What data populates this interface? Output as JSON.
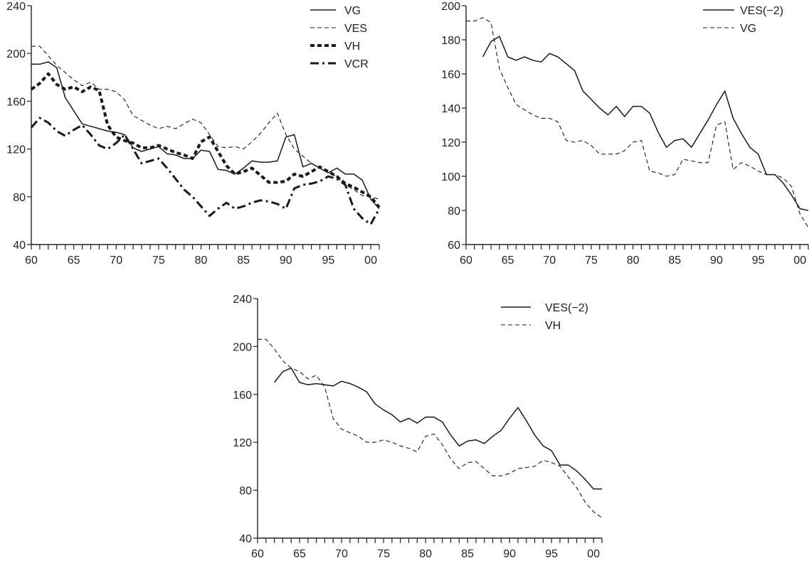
{
  "chart_data": [
    {
      "type": "line",
      "title": "",
      "xlabel": "",
      "ylabel": "",
      "xlim": [
        1960,
        2001
      ],
      "ylim": [
        40,
        240
      ],
      "yticks": [
        40,
        80,
        120,
        160,
        200,
        240
      ],
      "xticks": [
        1960,
        1965,
        1970,
        1975,
        1980,
        1985,
        1990,
        1995,
        2000
      ],
      "xtick_labels": [
        "60",
        "65",
        "70",
        "75",
        "80",
        "85",
        "90",
        "95",
        "00"
      ],
      "legend_position": "top-right",
      "series": [
        {
          "name": "VG",
          "style": "solid-thin",
          "x": [
            1960,
            1961,
            1962,
            1963,
            1964,
            1965,
            1966,
            1967,
            1968,
            1969,
            1970,
            1971,
            1972,
            1973,
            1974,
            1975,
            1976,
            1977,
            1978,
            1979,
            1980,
            1981,
            1982,
            1983,
            1984,
            1985,
            1986,
            1987,
            1988,
            1989,
            1990,
            1991,
            1992,
            1993,
            1994,
            1995,
            1996,
            1997,
            1998,
            1999,
            2000,
            2001
          ],
          "values": [
            191,
            191,
            193,
            188,
            163,
            152,
            141,
            139,
            137,
            135,
            134,
            132,
            121,
            118,
            120,
            122,
            116,
            115,
            112,
            112,
            119,
            118,
            103,
            102,
            99,
            104,
            110,
            109,
            109,
            110,
            130,
            132,
            105,
            108,
            104,
            100,
            104,
            99,
            99,
            94,
            78,
            70
          ]
        },
        {
          "name": "VES",
          "style": "dashed-thin",
          "x": [
            1960,
            1961,
            1962,
            1963,
            1964,
            1965,
            1966,
            1967,
            1968,
            1969,
            1970,
            1971,
            1972,
            1973,
            1974,
            1975,
            1976,
            1977,
            1978,
            1979,
            1980,
            1981,
            1982,
            1983,
            1984,
            1985,
            1986,
            1987,
            1988,
            1989,
            1990,
            1991,
            1992,
            1993,
            1994,
            1995,
            1996,
            1997,
            1998,
            1999,
            2000,
            2001
          ],
          "values": [
            206,
            206,
            198,
            190,
            184,
            178,
            173,
            176,
            170,
            170,
            168,
            161,
            148,
            144,
            140,
            137,
            139,
            137,
            141,
            145,
            142,
            132,
            122,
            121,
            122,
            120,
            126,
            133,
            142,
            150,
            132,
            120,
            114,
            108,
            104,
            100,
            97,
            90,
            86,
            81,
            80,
            78
          ]
        },
        {
          "name": "VH",
          "style": "dotted-thick",
          "x": [
            1960,
            1961,
            1962,
            1963,
            1964,
            1965,
            1966,
            1967,
            1968,
            1969,
            1970,
            1971,
            1972,
            1973,
            1974,
            1975,
            1976,
            1977,
            1978,
            1979,
            1980,
            1981,
            1982,
            1983,
            1984,
            1985,
            1986,
            1987,
            1988,
            1989,
            1990,
            1991,
            1992,
            1993,
            1994,
            1995,
            1996,
            1997,
            1998,
            1999,
            2000,
            2001
          ],
          "values": [
            170,
            175,
            183,
            174,
            170,
            172,
            168,
            172,
            169,
            140,
            130,
            127,
            125,
            121,
            121,
            123,
            120,
            117,
            115,
            112,
            126,
            130,
            118,
            106,
            99,
            101,
            104,
            98,
            92,
            92,
            93,
            99,
            97,
            101,
            105,
            101,
            97,
            91,
            88,
            84,
            80,
            71
          ]
        },
        {
          "name": "VCR",
          "style": "dashdot-thick",
          "x": [
            1960,
            1961,
            1962,
            1963,
            1964,
            1965,
            1966,
            1967,
            1968,
            1969,
            1970,
            1971,
            1972,
            1973,
            1974,
            1975,
            1976,
            1977,
            1978,
            1979,
            1980,
            1981,
            1982,
            1983,
            1984,
            1985,
            1986,
            1987,
            1988,
            1989,
            1990,
            1991,
            1992,
            1993,
            1994,
            1995,
            1996,
            1997,
            1998,
            1999,
            2000,
            2001
          ],
          "values": [
            138,
            146,
            142,
            135,
            131,
            136,
            140,
            132,
            123,
            120,
            125,
            132,
            120,
            108,
            110,
            112,
            104,
            95,
            86,
            80,
            72,
            64,
            70,
            75,
            70,
            72,
            75,
            77,
            76,
            74,
            70,
            87,
            90,
            91,
            93,
            97,
            95,
            90,
            70,
            62,
            57,
            70
          ]
        }
      ]
    },
    {
      "type": "line",
      "title": "",
      "xlabel": "",
      "ylabel": "",
      "xlim": [
        1960,
        2001
      ],
      "ylim": [
        60,
        200
      ],
      "yticks": [
        60,
        80,
        100,
        120,
        140,
        160,
        180,
        200
      ],
      "xticks": [
        1960,
        1965,
        1970,
        1975,
        1980,
        1985,
        1990,
        1995,
        2000
      ],
      "xtick_labels": [
        "60",
        "65",
        "70",
        "75",
        "80",
        "85",
        "90",
        "95",
        "00"
      ],
      "legend_position": "top-right",
      "series": [
        {
          "name": "VES(−2)",
          "style": "solid-thin",
          "x": [
            1962,
            1963,
            1964,
            1965,
            1966,
            1967,
            1968,
            1969,
            1970,
            1971,
            1972,
            1973,
            1974,
            1975,
            1976,
            1977,
            1978,
            1979,
            1980,
            1981,
            1982,
            1983,
            1984,
            1985,
            1986,
            1987,
            1988,
            1989,
            1990,
            1991,
            1992,
            1993,
            1994,
            1995,
            1996,
            1997,
            1998,
            1999,
            2000,
            2001
          ],
          "values": [
            170,
            179,
            182,
            170,
            168,
            170,
            168,
            167,
            172,
            170,
            166,
            162,
            150,
            145,
            140,
            136,
            141,
            135,
            141,
            141,
            137,
            126,
            117,
            121,
            122,
            117,
            125,
            133,
            142,
            150,
            134,
            125,
            117,
            113,
            101,
            101,
            96,
            89,
            81,
            80
          ]
        },
        {
          "name": "VG",
          "style": "dashed-thin",
          "x": [
            1960,
            1961,
            1962,
            1963,
            1964,
            1965,
            1966,
            1967,
            1968,
            1969,
            1970,
            1971,
            1972,
            1973,
            1974,
            1975,
            1976,
            1977,
            1978,
            1979,
            1980,
            1981,
            1982,
            1983,
            1984,
            1985,
            1986,
            1987,
            1988,
            1989,
            1990,
            1991,
            1992,
            1993,
            1994,
            1995,
            1996,
            1997,
            1998,
            1999,
            2000,
            2001
          ],
          "values": [
            191,
            191,
            193,
            190,
            163,
            152,
            142,
            139,
            136,
            134,
            134,
            132,
            121,
            120,
            121,
            118,
            113,
            113,
            113,
            115,
            120,
            121,
            103,
            102,
            100,
            101,
            110,
            109,
            108,
            108,
            130,
            132,
            104,
            108,
            106,
            103,
            101,
            101,
            99,
            94,
            78,
            70
          ]
        }
      ]
    },
    {
      "type": "line",
      "title": "",
      "xlabel": "",
      "ylabel": "",
      "xlim": [
        1960,
        2001
      ],
      "ylim": [
        40,
        240
      ],
      "yticks": [
        40,
        80,
        120,
        160,
        200,
        240
      ],
      "xticks": [
        1960,
        1965,
        1970,
        1975,
        1980,
        1985,
        1990,
        1995,
        2000
      ],
      "xtick_labels": [
        "60",
        "65",
        "70",
        "75",
        "80",
        "85",
        "90",
        "95",
        "00"
      ],
      "legend_position": "top-right",
      "series": [
        {
          "name": "VES(−2)",
          "style": "solid-thin",
          "x": [
            1962,
            1963,
            1964,
            1965,
            1966,
            1967,
            1968,
            1969,
            1970,
            1971,
            1972,
            1973,
            1974,
            1975,
            1976,
            1977,
            1978,
            1979,
            1980,
            1981,
            1982,
            1983,
            1984,
            1985,
            1986,
            1987,
            1988,
            1989,
            1990,
            1991,
            1992,
            1993,
            1994,
            1995,
            1996,
            1997,
            1998,
            1999,
            2000,
            2001
          ],
          "values": [
            170,
            179,
            182,
            170,
            168,
            169,
            168,
            167,
            171,
            169,
            166,
            162,
            152,
            147,
            143,
            137,
            140,
            136,
            141,
            141,
            137,
            126,
            117,
            121,
            122,
            119,
            125,
            130,
            140,
            149,
            138,
            126,
            117,
            113,
            101,
            101,
            96,
            89,
            81,
            81
          ]
        },
        {
          "name": "VH",
          "style": "dashed-thin",
          "x": [
            1960,
            1961,
            1962,
            1963,
            1964,
            1965,
            1966,
            1967,
            1968,
            1969,
            1970,
            1971,
            1972,
            1973,
            1974,
            1975,
            1976,
            1977,
            1978,
            1979,
            1980,
            1981,
            1982,
            1983,
            1984,
            1985,
            1986,
            1987,
            1988,
            1989,
            1990,
            1991,
            1992,
            1993,
            1994,
            1995,
            1996,
            1997,
            1998,
            1999,
            2000,
            2001
          ],
          "values": [
            206,
            206,
            198,
            188,
            182,
            179,
            173,
            176,
            166,
            140,
            131,
            128,
            125,
            120,
            120,
            122,
            120,
            117,
            115,
            112,
            125,
            127,
            118,
            106,
            98,
            103,
            104,
            98,
            92,
            92,
            94,
            98,
            99,
            100,
            105,
            103,
            100,
            91,
            82,
            70,
            62,
            57
          ]
        }
      ]
    }
  ]
}
